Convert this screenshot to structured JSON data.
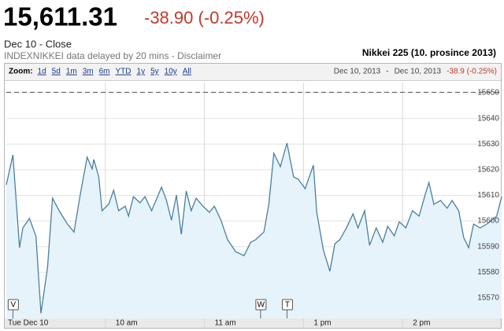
{
  "header": {
    "price": "15,611.31",
    "change": "-38.90 (-0.25%)",
    "close_label": "Dec 10 - Close",
    "delay_note": "INDEXNIKKEI data delayed by 20 mins - Disclaimer"
  },
  "chart_data": {
    "type": "line",
    "title": "Nikkei 225 (10. prosince 2013)",
    "zoom_label": "Zoom:",
    "zoom_options": [
      "1d",
      "5d",
      "1m",
      "3m",
      "6m",
      "YTD",
      "1y",
      "5y",
      "10y",
      "All"
    ],
    "range_start": "Dec 10, 2013",
    "range_separator": "-",
    "range_end": "Dec 10, 2013",
    "range_change": "-38.9 (-0.25%)",
    "color": "#4a7fa0",
    "area_color": "#e6f3fa",
    "reference_line": 15650.21,
    "x": [
      0,
      4,
      8,
      10,
      14,
      18,
      21,
      25,
      28,
      32,
      37,
      41,
      45,
      49,
      52,
      53,
      56,
      58,
      62,
      65,
      68,
      72,
      74,
      77,
      81,
      84,
      88,
      92,
      94,
      97,
      100,
      103,
      106,
      109,
      112,
      115,
      119,
      123,
      126,
      130,
      134,
      139,
      144,
      148,
      151,
      156,
      159,
      162,
      166,
      170,
      174,
      177,
      181,
      186,
      188,
      192,
      196,
      199,
      202,
      206,
      210,
      213,
      217,
      220,
      224,
      228,
      231,
      235,
      238,
      242,
      246,
      250,
      254,
      256,
      259,
      263,
      267,
      270,
      274,
      277,
      280,
      283,
      287,
      291,
      294,
      297,
      300
    ],
    "values": [
      15614.1,
      15625.8,
      15589.6,
      15597.3,
      15601.0,
      15594.0,
      15564.0,
      15582.0,
      15608.9,
      15604.0,
      15598.8,
      15595.7,
      15611.0,
      15624.9,
      15620.3,
      15624.0,
      15617.2,
      15604.0,
      15606.5,
      15612.0,
      15604.0,
      15605.8,
      15601.9,
      15609.5,
      15607.1,
      15609.5,
      15604.0,
      15610.1,
      15613.2,
      15608.0,
      15600.3,
      15610.1,
      15594.8,
      15611.7,
      15604.0,
      15608.9,
      15605.8,
      15603.4,
      15605.8,
      15600.3,
      15592.7,
      15588.0,
      15586.5,
      15591.7,
      15592.7,
      15595.7,
      15606.5,
      15626.4,
      15621.2,
      15630.4,
      15617.2,
      15616.2,
      15612.6,
      15621.8,
      15603.4,
      15588.7,
      15580.4,
      15591.1,
      15592.7,
      15597.3,
      15602.8,
      15597.3,
      15604.0,
      15590.5,
      15597.3,
      15591.7,
      15597.9,
      15594.2,
      15599.7,
      15597.3,
      15604.0,
      15601.9,
      15611.0,
      15615.0,
      15606.5,
      15608.0,
      15605.0,
      15608.0,
      15604.0,
      15593.6,
      15589.6,
      15598.8,
      15597.3,
      15598.8,
      15600.3,
      15601.9,
      15609.5
    ],
    "xlim": [
      0,
      300
    ],
    "xticks": [
      {
        "value": 0,
        "label": "Tue Dec 10"
      },
      {
        "value": 60,
        "label": "10 am"
      },
      {
        "value": 120,
        "label": "11 am"
      },
      {
        "value": 180,
        "label": "1 pm"
      },
      {
        "value": 240,
        "label": "2 pm"
      }
    ],
    "ylim": [
      15562,
      15654
    ],
    "yticks": [
      15570,
      15580,
      15590,
      15600,
      15610,
      15620,
      15630,
      15640,
      15650
    ],
    "grid": true,
    "flags": [
      {
        "x": 4,
        "label": "V"
      },
      {
        "x": 154,
        "label": "W"
      },
      {
        "x": 170,
        "label": "T"
      }
    ]
  }
}
